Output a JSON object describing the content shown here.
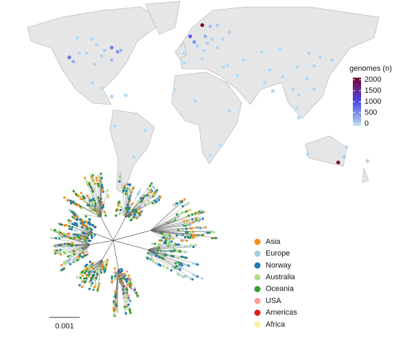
{
  "chart_data": {
    "type": "map",
    "colorbar_title": "genomes (n)",
    "clim": [
      0,
      2000
    ],
    "cticks": [
      0,
      500,
      1000,
      1500,
      2000
    ],
    "colorscale": [
      "#b9dcf2",
      "#4b4be6",
      "#7a0030"
    ],
    "points": {
      "lon": [
        -122,
        -118,
        -112,
        -105,
        -97,
        -90,
        -87,
        -80,
        -74,
        -71,
        -95,
        -100,
        -80,
        -114,
        -99,
        -90,
        -80,
        -58,
        -47,
        -77,
        -66,
        10,
        -2,
        2,
        13,
        18,
        25,
        20,
        5,
        -8,
        12,
        30,
        37,
        25,
        15,
        35,
        45,
        31,
        -17,
        3,
        37,
        28,
        18,
        -8,
        10,
        51,
        69,
        77,
        72,
        80,
        90,
        100,
        104,
        106,
        114,
        121,
        116,
        127,
        139,
        121,
        106,
        87,
        104,
        145,
        151,
        115,
        153,
        174
      ],
      "lat": [
        37,
        34,
        40,
        40,
        32,
        38,
        42,
        35,
        41,
        42,
        46,
        50,
        44,
        51,
        19,
        15,
        9,
        -34,
        -15,
        -12,
        10,
        60,
        52,
        48,
        52,
        59,
        60,
        50,
        45,
        40,
        42,
        50,
        55,
        44,
        47,
        31,
        24,
        30,
        14,
        6,
        -1,
        -26,
        -33,
        33,
        36,
        35,
        41,
        28,
        19,
        13,
        23,
        14,
        1,
        10,
        22,
        31,
        40,
        37,
        35,
        14,
        -6,
        43,
        30,
        -38,
        -34,
        -32,
        -27,
        -37
      ],
      "values": [
        700,
        300,
        20,
        30,
        40,
        60,
        100,
        200,
        500,
        250,
        30,
        20,
        600,
        15,
        20,
        15,
        20,
        20,
        15,
        15,
        15,
        1900,
        900,
        500,
        300,
        200,
        100,
        80,
        60,
        40,
        50,
        30,
        60,
        40,
        100,
        30,
        20,
        20,
        15,
        15,
        15,
        20,
        15,
        15,
        15,
        20,
        15,
        30,
        25,
        20,
        15,
        20,
        30,
        20,
        40,
        50,
        40,
        40,
        60,
        20,
        20,
        15,
        20,
        1900,
        100,
        30,
        20,
        50
      ]
    },
    "legend": {
      "series": [
        {
          "name": "Asia",
          "color": "#f28e1c"
        },
        {
          "name": "Europe",
          "color": "#a6cee3"
        },
        {
          "name": "Norway",
          "color": "#1f78b4"
        },
        {
          "name": "Australia",
          "color": "#b2df8a"
        },
        {
          "name": "Oceania",
          "color": "#33a02c"
        },
        {
          "name": "USA",
          "color": "#fb9a99"
        },
        {
          "name": "Americas",
          "color": "#e31a1c"
        },
        {
          "name": "Africa",
          "color": "#fff09a"
        }
      ]
    },
    "scale_label": "0.001"
  }
}
